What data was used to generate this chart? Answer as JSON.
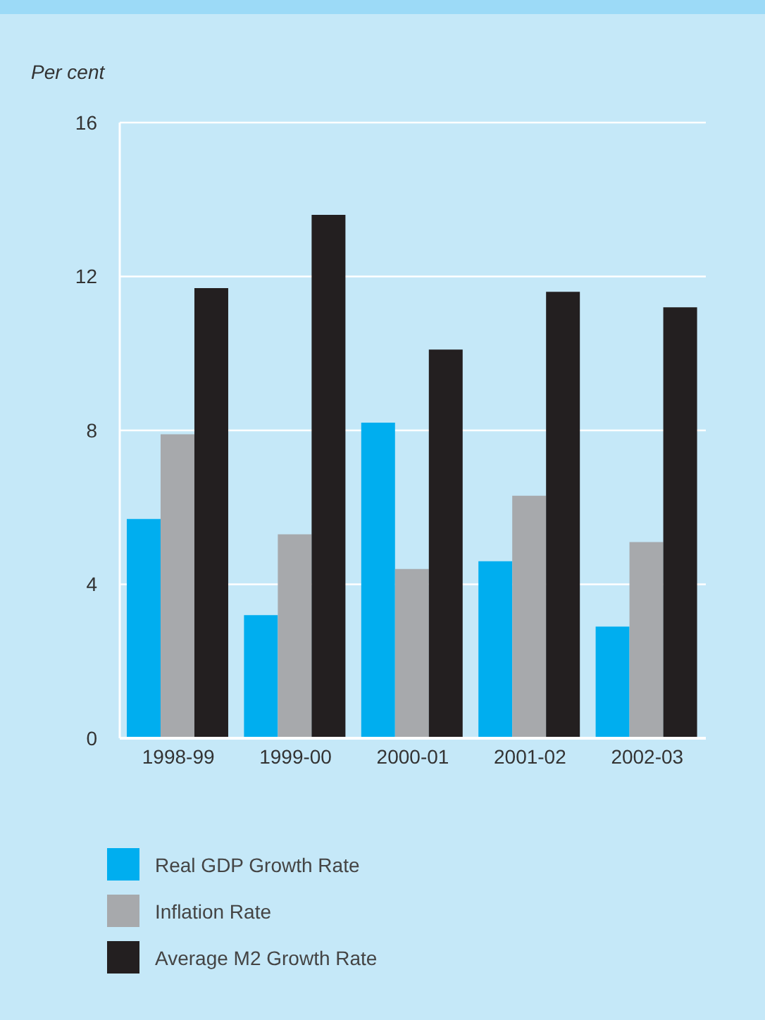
{
  "chart_data": {
    "type": "bar",
    "ylabel": "Per cent",
    "categories": [
      "1998-99",
      "1999-00",
      "2000-01",
      "2001-02",
      "2002-03"
    ],
    "series": [
      {
        "name": "Real GDP Growth Rate",
        "color": "#00aeef",
        "values": [
          5.7,
          3.2,
          8.2,
          4.6,
          2.9
        ]
      },
      {
        "name": "Inflation Rate",
        "color": "#a7a9ac",
        "values": [
          7.9,
          5.3,
          4.4,
          6.3,
          5.1
        ]
      },
      {
        "name": "Average M2 Growth Rate",
        "color": "#231f20",
        "values": [
          11.7,
          13.6,
          10.1,
          11.6,
          11.2
        ]
      }
    ],
    "ylim": [
      0,
      16
    ],
    "yticks": [
      0,
      4,
      8,
      12,
      16
    ],
    "grid": "y",
    "legend": "bottom"
  }
}
